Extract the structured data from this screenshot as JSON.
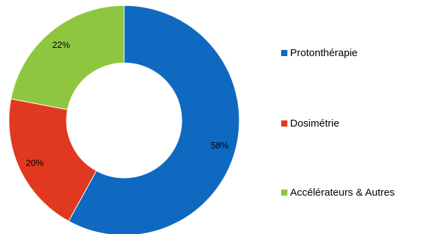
{
  "chart_data": {
    "type": "pie",
    "variant": "donut",
    "title": "",
    "categories": [
      "Protonthérapie",
      "Dosimétrie",
      "Accélérateurs & Autres"
    ],
    "values": [
      58,
      20,
      22
    ],
    "value_labels": [
      "58%",
      "20%",
      "22%"
    ],
    "colors": [
      "#1069c0",
      "#e0391f",
      "#8ec63f"
    ],
    "start_angle_deg": 0,
    "direction": "clockwise",
    "legend": "right"
  }
}
